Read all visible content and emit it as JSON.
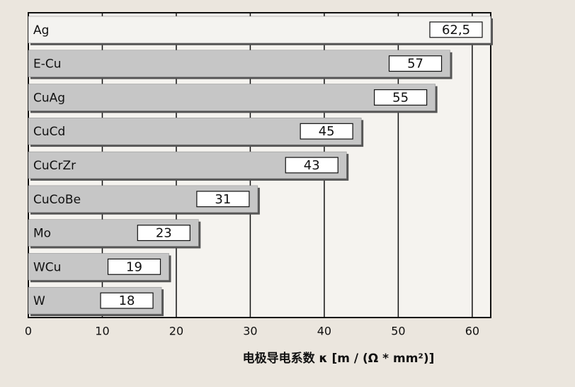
{
  "chart_data": {
    "type": "bar",
    "orientation": "horizontal",
    "categories": [
      "Ag",
      "E-Cu",
      "CuAg",
      "CuCd",
      "CuCrZr",
      "CuCoBe",
      "Mo",
      "WCu",
      "W"
    ],
    "values": [
      62.5,
      57,
      55,
      45,
      43,
      31,
      23,
      19,
      18
    ],
    "value_labels": [
      "62,5",
      "57",
      "55",
      "45",
      "43",
      "31",
      "23",
      "19",
      "18"
    ],
    "colors": [
      "#f4f3f0",
      "#c6c6c6",
      "#c6c6c6",
      "#c6c6c6",
      "#c6c6c6",
      "#c6c6c6",
      "#c6c6c6",
      "#c6c6c6",
      "#c6c6c6"
    ],
    "xlim": [
      0,
      62.5
    ],
    "xticks": [
      0,
      10,
      20,
      30,
      40,
      50,
      60
    ],
    "grid": true,
    "x_label": "电极导电系数 κ [m / (Ω * mm²)]"
  }
}
